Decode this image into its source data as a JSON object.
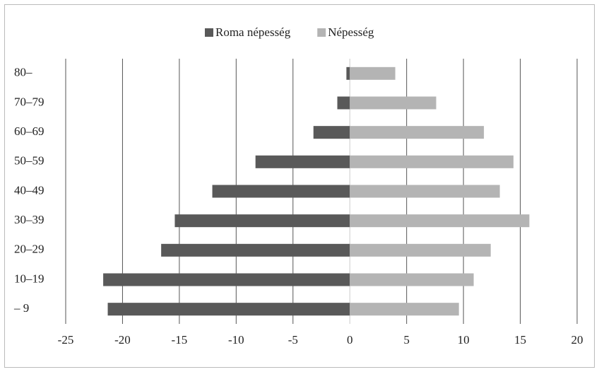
{
  "chart_data": {
    "type": "bar",
    "orientation": "horizontal",
    "categories": [
      "– 9",
      "10–19",
      "20–29",
      "30–39",
      "40–49",
      "50–59",
      "60–69",
      "70–79",
      "80–"
    ],
    "series": [
      {
        "name": "Roma népesség",
        "color": "#595959",
        "values": [
          -21.3,
          -21.7,
          -16.6,
          -15.4,
          -12.1,
          -8.3,
          -3.2,
          -1.1,
          -0.3
        ]
      },
      {
        "name": "Népesség",
        "color": "#b4b4b4",
        "values": [
          9.6,
          10.9,
          12.4,
          15.8,
          13.2,
          14.4,
          11.8,
          7.6,
          4.0
        ]
      }
    ],
    "xlim": [
      -25,
      20
    ],
    "xticks": [
      -25,
      -20,
      -15,
      -10,
      -5,
      0,
      5,
      10,
      15,
      20
    ],
    "grid": true,
    "legend": "top"
  }
}
